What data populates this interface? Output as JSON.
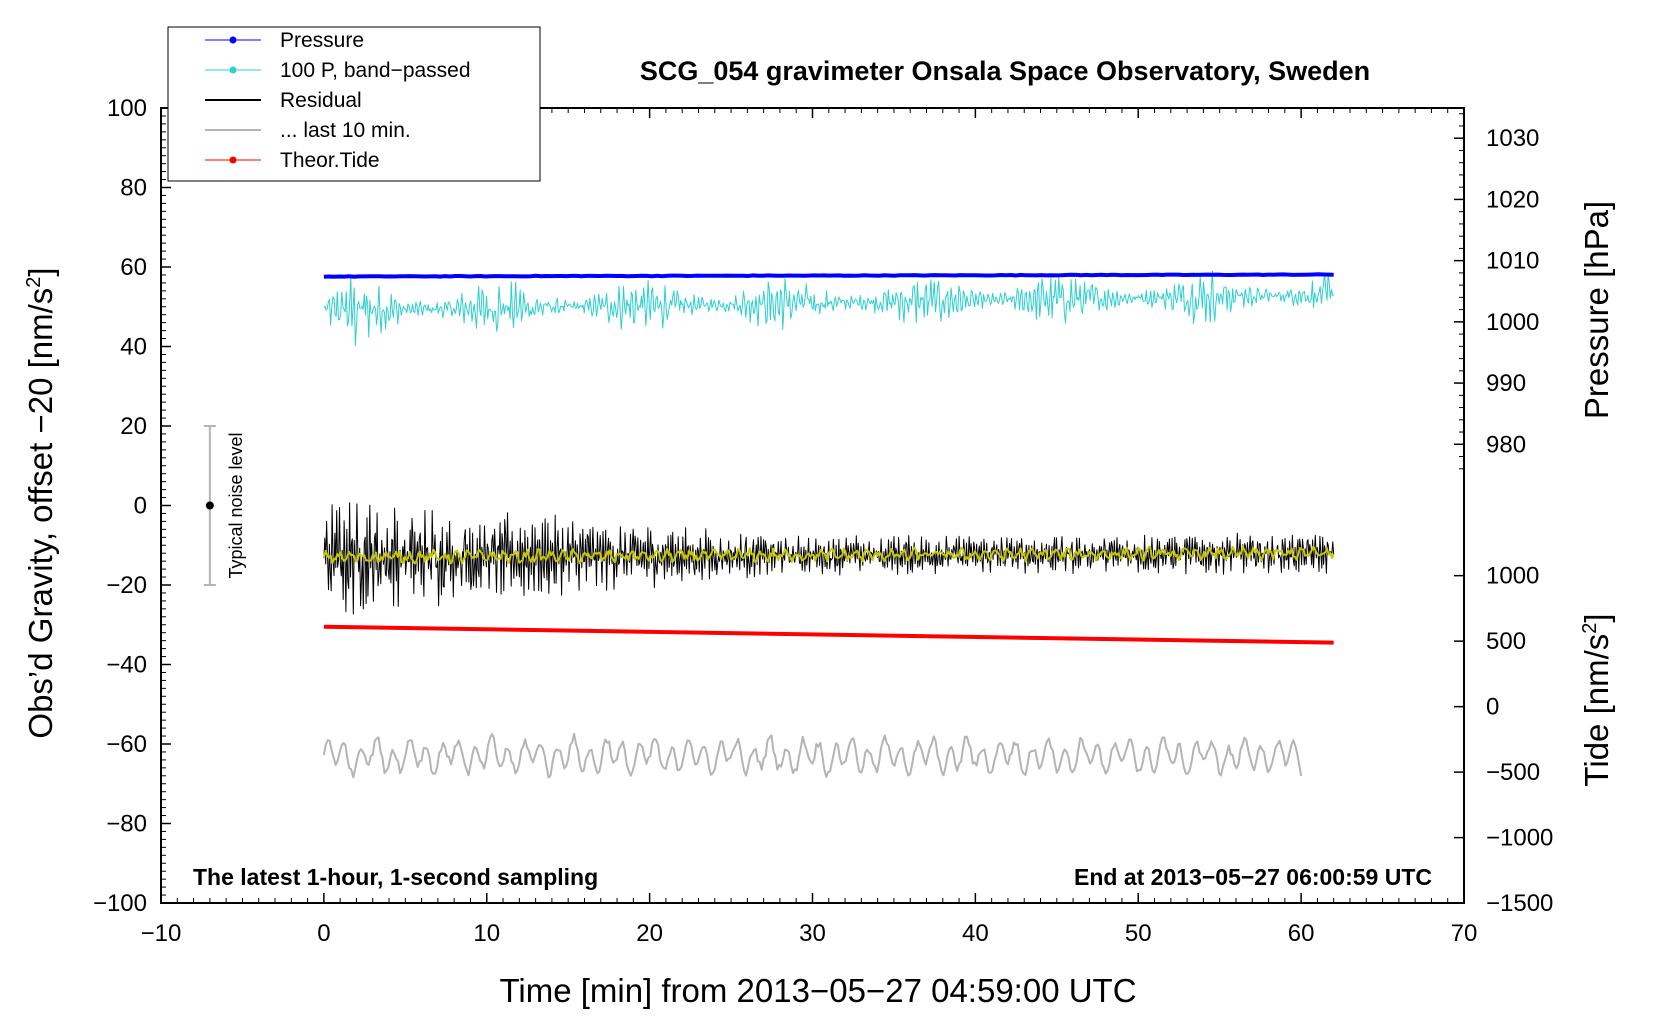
{
  "chart_data": {
    "type": "line",
    "title": "SCG_054 gravimeter Onsala Space Observatory, Sweden",
    "xlabel": "Time [min] from 2013−05−27 04:59:00 UTC",
    "ylabel_left_main": "Obs’d Gravity, offset −20 [nm/s",
    "ylabel_left_sup": "2",
    "ylabel_left_end": "]",
    "ylabel_right_pressure": "Pressure [hPa]",
    "ylabel_right_tide_main": "Tide [nm/s",
    "ylabel_right_tide_sup": "2",
    "ylabel_right_tide_end": "]",
    "xlim": [
      -10,
      70
    ],
    "ylim": [
      -100,
      100
    ],
    "x_ticks": [
      -10,
      0,
      10,
      20,
      30,
      40,
      50,
      60,
      70
    ],
    "x_tick_labels": [
      "−10",
      "0",
      "10",
      "20",
      "30",
      "40",
      "50",
      "60",
      "70"
    ],
    "y_ticks": [
      -100,
      -80,
      -60,
      -40,
      -20,
      0,
      20,
      40,
      60,
      80,
      100
    ],
    "y_tick_labels": [
      "−100",
      "−80",
      "−60",
      "−40",
      "−20",
      "0",
      "20",
      "40",
      "60",
      "80",
      "100"
    ],
    "pressure_axis": {
      "ticks": [
        980,
        990,
        1000,
        1010,
        1020,
        1030
      ],
      "tick_labels": [
        "980",
        "990",
        "1000",
        "1010",
        "1020",
        "1030"
      ],
      "gravity_units_at_1000": 46.2,
      "gravity_units_per_hpa": 1.54
    },
    "tide_axis": {
      "ticks": [
        -1500,
        -1000,
        -500,
        0,
        500,
        1000
      ],
      "tick_labels": [
        "−1500",
        "−1000",
        "−500",
        "0",
        "500",
        "1000"
      ],
      "gravity_units_at_0": -50.6,
      "gravity_units_per_nms2": 0.03295
    },
    "annotations": {
      "left": "The latest 1-hour, 1-second sampling",
      "right": "End at 2013−05−27 06:00:59 UTC",
      "noise_label": "Typical noise level"
    },
    "noise_bar": {
      "x": -7,
      "center": 0,
      "low": -20,
      "high": 20
    },
    "legend": [
      {
        "label": "Pressure",
        "color": "#0000ff",
        "marker": true
      },
      {
        "label": "100 P, band−passed",
        "color": "#2ecfcf",
        "marker": true
      },
      {
        "label": "Residual",
        "color": "#000000",
        "marker": false
      },
      {
        "label": "... last 10 min.",
        "color": "#b4b4b4",
        "marker": false
      },
      {
        "label": "Theor.Tide",
        "color": "#ff0000",
        "marker": true
      }
    ],
    "series": [
      {
        "name": "Pressure",
        "color": "#0000ff",
        "x_range": [
          0,
          62
        ],
        "start": 57.6,
        "end": 58.1,
        "unit": "gravity-axis"
      },
      {
        "name": "100 P, band−passed",
        "color": "#2ecfcf",
        "x_range": [
          0,
          62
        ],
        "start": 49,
        "end": 53,
        "noise_amp": 3.5,
        "unit": "gravity-axis"
      },
      {
        "name": "Residual",
        "color": "#000000",
        "x_range": [
          0,
          62
        ],
        "start": -13,
        "end": -12,
        "noise_amp_start": 12,
        "noise_amp_end": 4,
        "unit": "gravity-axis"
      },
      {
        "name": "Residual smoothed",
        "color": "#c8c800",
        "x_range": [
          0,
          62
        ],
        "start": -13,
        "end": -12,
        "noise_amp": 1.5,
        "unit": "gravity-axis"
      },
      {
        "name": "... last 10 min.",
        "color": "#b4b4b4",
        "x_range": [
          0,
          60
        ],
        "center": -63,
        "noise_amp": 4,
        "unit": "gravity-axis"
      },
      {
        "name": "Theor.Tide",
        "color": "#ff0000",
        "x_range": [
          0,
          62
        ],
        "start": -30.5,
        "end": -34.5,
        "unit": "gravity-axis"
      }
    ]
  }
}
